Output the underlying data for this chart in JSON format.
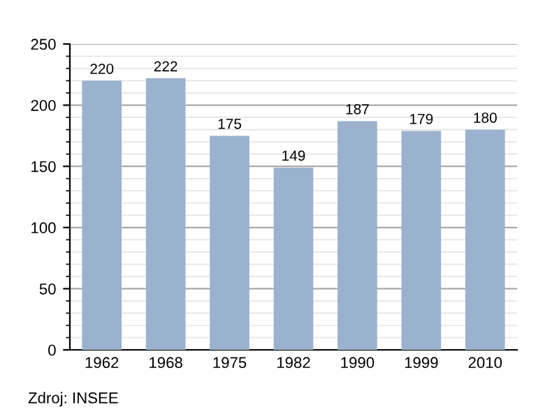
{
  "chart_data": {
    "type": "bar",
    "categories": [
      "1962",
      "1968",
      "1975",
      "1982",
      "1990",
      "1999",
      "2010"
    ],
    "values": [
      220,
      222,
      175,
      149,
      187,
      179,
      180
    ],
    "color": "#9ab2cd",
    "ylim": [
      0,
      250
    ],
    "yticks": [
      0,
      50,
      100,
      150,
      200,
      250
    ],
    "grid": "y",
    "data_labels": true,
    "annotations": [
      "Zdroj: INSEE"
    ]
  }
}
